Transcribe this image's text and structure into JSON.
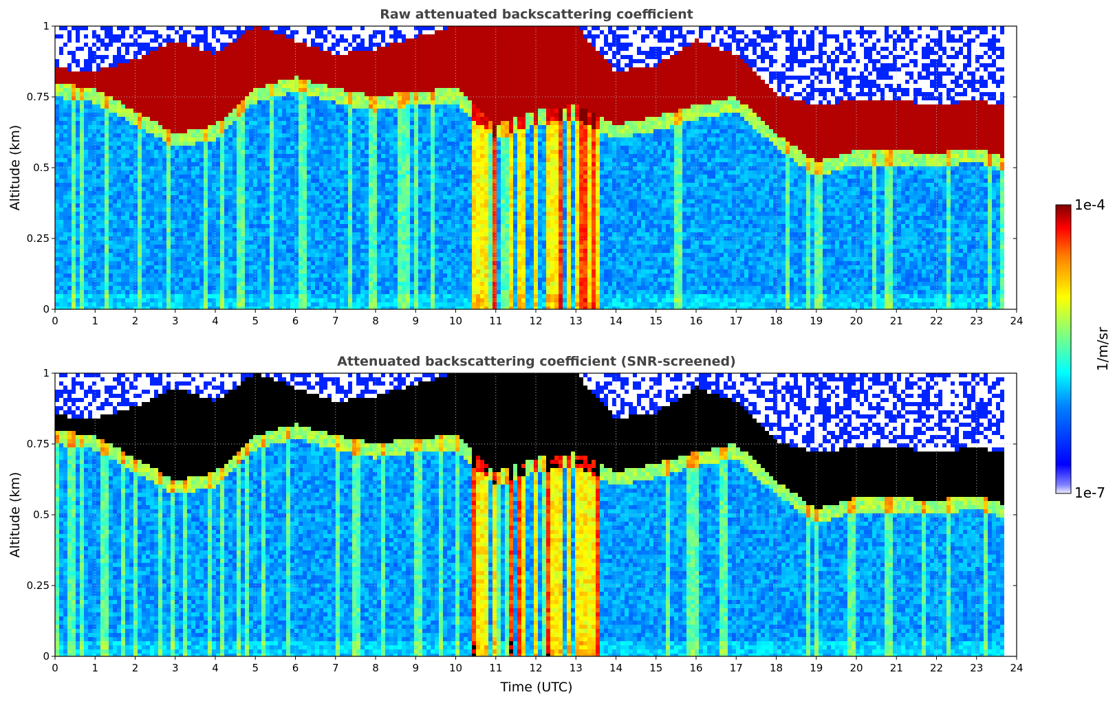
{
  "colors": {
    "title": "#444444",
    "colormap": "jet",
    "saturated_screened": "#000000",
    "missing": "#ffffff"
  },
  "chart_data": [
    {
      "type": "heatmap",
      "title": "Raw attenuated backscattering coefficient",
      "xlabel": "",
      "ylabel": "Altitude (km)",
      "xlim": [
        0,
        24
      ],
      "ylim": [
        0,
        1
      ],
      "x_ticks": [
        "0",
        "1",
        "2",
        "3",
        "4",
        "5",
        "6",
        "7",
        "8",
        "9",
        "10",
        "11",
        "12",
        "13",
        "14",
        "15",
        "16",
        "17",
        "18",
        "19",
        "20",
        "21",
        "22",
        "23",
        "24"
      ],
      "y_ticks": [
        "0",
        "0.25",
        "0.5",
        "0.75",
        "1"
      ],
      "grid": true,
      "data_end_hour": 23.6,
      "cloud_layer": {
        "description_hours": [
          0,
          1,
          2,
          3,
          4,
          5,
          6,
          7,
          8,
          9,
          10,
          11,
          12,
          13,
          14,
          15,
          16,
          17,
          18,
          19,
          20,
          21,
          22,
          23,
          23.6
        ],
        "base_km": [
          0.8,
          0.78,
          0.7,
          0.62,
          0.65,
          0.78,
          0.82,
          0.78,
          0.75,
          0.77,
          0.78,
          0.65,
          0.7,
          0.72,
          0.65,
          0.68,
          0.72,
          0.75,
          0.62,
          0.52,
          0.56,
          0.56,
          0.55,
          0.57,
          0.54
        ],
        "top_km": [
          0.85,
          0.84,
          0.88,
          0.95,
          0.9,
          1.0,
          0.95,
          0.9,
          0.92,
          0.96,
          1.0,
          1.0,
          1.0,
          1.0,
          0.84,
          0.86,
          0.95,
          0.9,
          0.76,
          0.72,
          0.74,
          0.74,
          0.72,
          0.74,
          0.72
        ]
      },
      "colorbar_scale": "log10 from -7 to -4"
    },
    {
      "type": "heatmap",
      "title": "Attenuated backscattering coefficient (SNR-screened)",
      "xlabel": "Time (UTC)",
      "ylabel": "Altitude (km)",
      "xlim": [
        0,
        24
      ],
      "ylim": [
        0,
        1
      ],
      "x_ticks": [
        "0",
        "1",
        "2",
        "3",
        "4",
        "5",
        "6",
        "7",
        "8",
        "9",
        "10",
        "11",
        "12",
        "13",
        "14",
        "15",
        "16",
        "17",
        "18",
        "19",
        "20",
        "21",
        "22",
        "23",
        "24"
      ],
      "y_ticks": [
        "0",
        "0.25",
        "0.5",
        "0.75",
        "1"
      ],
      "grid": true,
      "data_end_hour": 23.6,
      "saturated_color": "black",
      "colorbar_scale": "log10 from -7 to -4"
    }
  ],
  "colorbar": {
    "label": "1/m/sr",
    "max_label": "1e-4",
    "min_label": "1e-7"
  }
}
